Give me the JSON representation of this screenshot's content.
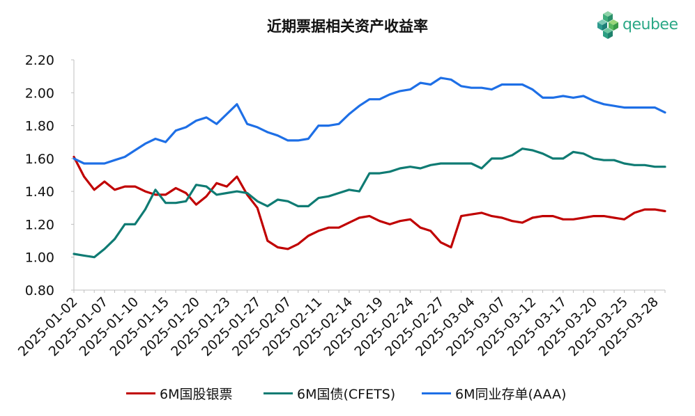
{
  "chart_data": {
    "type": "line",
    "title": "近期票据相关资产收益率",
    "xlabel": "",
    "ylabel": "",
    "ylim": [
      0.8,
      2.2
    ],
    "yticks": [
      "0.80",
      "1.00",
      "1.20",
      "1.40",
      "1.60",
      "1.80",
      "2.00",
      "2.20"
    ],
    "xtick_labels": [
      "2025-01-02",
      "2025-01-07",
      "2025-01-10",
      "2025-01-15",
      "2025-01-20",
      "2025-01-23",
      "2025-01-27",
      "2025-02-07",
      "2025-02-11",
      "2025-02-14",
      "2025-02-19",
      "2025-02-24",
      "2025-02-27",
      "2025-03-04",
      "2025-03-07",
      "2025-03-12",
      "2025-03-17",
      "2025-03-20",
      "2025-03-25",
      "2025-03-28"
    ],
    "xtick_every": 3,
    "grid": false,
    "legend_position": "bottom",
    "series": [
      {
        "name": "6M国股银票",
        "color": "#c00000",
        "values": [
          1.61,
          1.49,
          1.41,
          1.46,
          1.41,
          1.43,
          1.43,
          1.4,
          1.38,
          1.38,
          1.42,
          1.39,
          1.32,
          1.37,
          1.45,
          1.43,
          1.49,
          1.38,
          1.3,
          1.1,
          1.06,
          1.05,
          1.08,
          1.13,
          1.16,
          1.18,
          1.18,
          1.21,
          1.24,
          1.25,
          1.22,
          1.2,
          1.22,
          1.23,
          1.18,
          1.16,
          1.09,
          1.06,
          1.25,
          1.26,
          1.27,
          1.25,
          1.24,
          1.22,
          1.21,
          1.24,
          1.25,
          1.25,
          1.23,
          1.23,
          1.24,
          1.25,
          1.25,
          1.24,
          1.23,
          1.27,
          1.29,
          1.29,
          1.28
        ]
      },
      {
        "name": "6M国债(CFETS)",
        "color": "#0f7b73",
        "values": [
          1.02,
          1.01,
          1.0,
          1.05,
          1.11,
          1.2,
          1.2,
          1.29,
          1.41,
          1.33,
          1.33,
          1.34,
          1.44,
          1.43,
          1.38,
          1.39,
          1.4,
          1.39,
          1.34,
          1.31,
          1.35,
          1.34,
          1.31,
          1.31,
          1.36,
          1.37,
          1.39,
          1.41,
          1.4,
          1.51,
          1.51,
          1.52,
          1.54,
          1.55,
          1.54,
          1.56,
          1.57,
          1.57,
          1.57,
          1.57,
          1.54,
          1.6,
          1.6,
          1.62,
          1.66,
          1.65,
          1.63,
          1.6,
          1.6,
          1.64,
          1.63,
          1.6,
          1.59,
          1.59,
          1.57,
          1.56,
          1.56,
          1.55,
          1.55
        ]
      },
      {
        "name": "6M同业存单(AAA)",
        "color": "#1e6fe6",
        "values": [
          1.6,
          1.57,
          1.57,
          1.57,
          1.59,
          1.61,
          1.65,
          1.69,
          1.72,
          1.7,
          1.77,
          1.79,
          1.83,
          1.85,
          1.81,
          1.87,
          1.93,
          1.81,
          1.79,
          1.76,
          1.74,
          1.71,
          1.71,
          1.72,
          1.8,
          1.8,
          1.81,
          1.87,
          1.92,
          1.96,
          1.96,
          1.99,
          2.01,
          2.02,
          2.06,
          2.05,
          2.09,
          2.08,
          2.04,
          2.03,
          2.03,
          2.02,
          2.05,
          2.05,
          2.05,
          2.02,
          1.97,
          1.97,
          1.98,
          1.97,
          1.98,
          1.95,
          1.93,
          1.92,
          1.91,
          1.91,
          1.91,
          1.91,
          1.88
        ]
      }
    ]
  },
  "logo": {
    "text": "qeubee",
    "color": "#2ba886"
  }
}
